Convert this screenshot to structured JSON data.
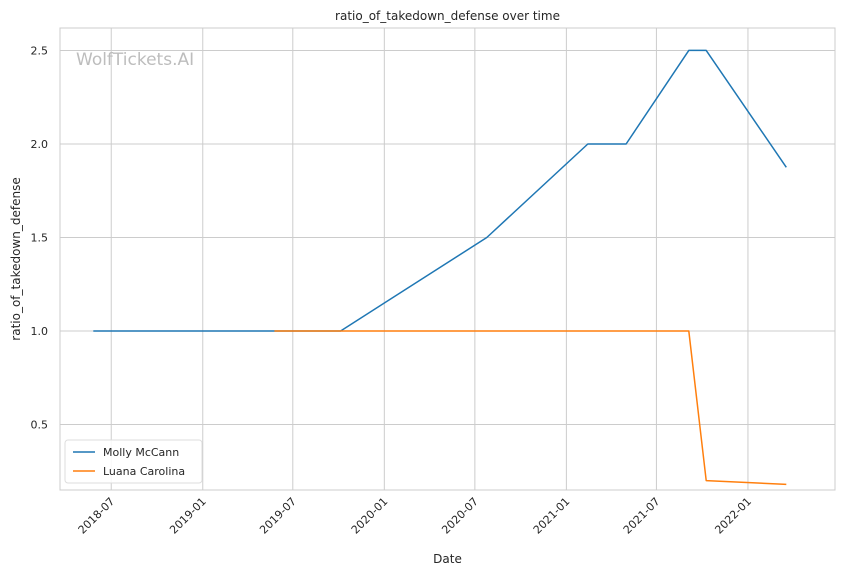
{
  "watermark": "WolfTickets.AI",
  "chart_data": {
    "type": "line",
    "title": "ratio_of_takedown_defense over time",
    "xlabel": "Date",
    "ylabel": "ratio_of_takedown_defense",
    "xlim": [
      "2018-03-20",
      "2022-06-25"
    ],
    "ylim": [
      0.15,
      2.62
    ],
    "x_ticks": [
      "2018-07",
      "2019-01",
      "2019-07",
      "2020-01",
      "2020-07",
      "2021-01",
      "2021-07",
      "2022-01"
    ],
    "y_ticks": [
      "0.5",
      "1.0",
      "1.5",
      "2.0",
      "2.5"
    ],
    "grid": true,
    "legend_position": "lower-left",
    "series": [
      {
        "name": "Molly McCann",
        "color": "#1f77b4",
        "points": [
          {
            "x": "2018-05-26",
            "y": 1.0
          },
          {
            "x": "2019-10-05",
            "y": 1.0
          },
          {
            "x": "2020-07-25",
            "y": 1.5
          },
          {
            "x": "2021-02-13",
            "y": 2.0
          },
          {
            "x": "2021-05-01",
            "y": 2.0
          },
          {
            "x": "2021-09-04",
            "y": 2.5
          },
          {
            "x": "2021-10-09",
            "y": 2.5
          },
          {
            "x": "2022-03-19",
            "y": 1.875
          }
        ]
      },
      {
        "name": "Luana Carolina",
        "color": "#ff7f0e",
        "points": [
          {
            "x": "2019-05-25",
            "y": 1.0
          },
          {
            "x": "2021-09-04",
            "y": 1.0
          },
          {
            "x": "2021-10-09",
            "y": 0.2
          },
          {
            "x": "2022-03-19",
            "y": 0.18
          }
        ]
      }
    ]
  }
}
